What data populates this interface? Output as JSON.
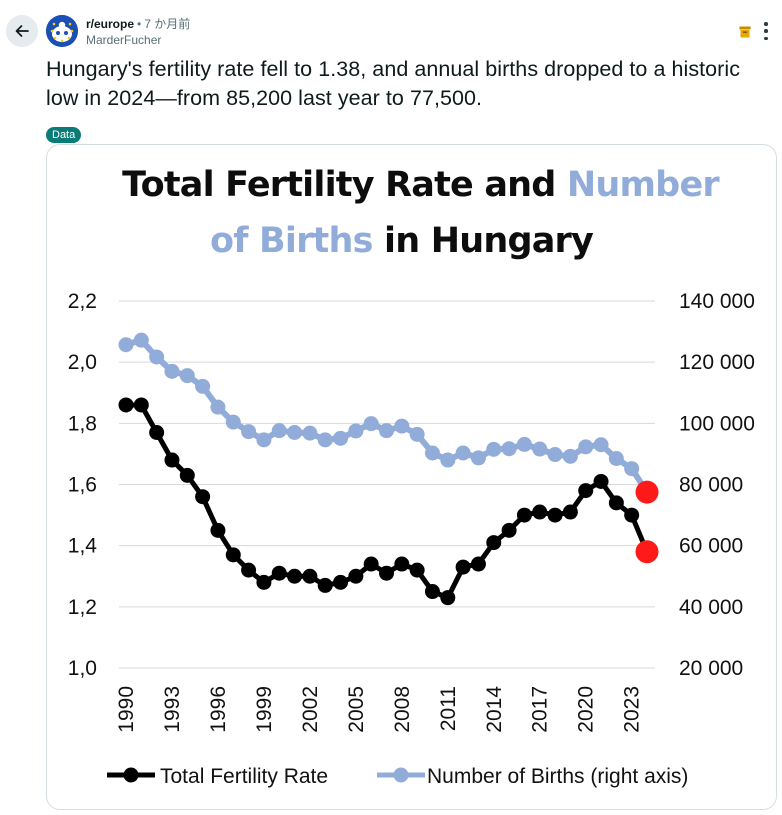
{
  "header": {
    "subreddit": "r/europe",
    "separator": "•",
    "time": "7 か月前",
    "author": "MarderFucher"
  },
  "post": {
    "title": "Hungary's fertility rate fell to 1.38, and annual births dropped to a historic low in 2024—from 85,200 last year to 77,500.",
    "flair": "Data"
  },
  "colors": {
    "fertility": "#000000",
    "births": "#92acd9",
    "highlight": "#ff1a1a",
    "flair_bg": "#0a7c77"
  },
  "icons": {
    "back": "arrow-left-icon",
    "archive": "archive-icon",
    "more": "more-vertical-icon"
  },
  "chart_data": {
    "type": "line",
    "title_part1": "Total Fertility Rate and",
    "title_part2": "Number",
    "title_part3": "of Births",
    "title_part4": "in Hungary",
    "x": [
      1990,
      1991,
      1992,
      1993,
      1994,
      1995,
      1996,
      1997,
      1998,
      1999,
      2000,
      2001,
      2002,
      2003,
      2004,
      2005,
      2006,
      2007,
      2008,
      2009,
      2010,
      2011,
      2012,
      2013,
      2014,
      2015,
      2016,
      2017,
      2018,
      2019,
      2020,
      2021,
      2022,
      2023,
      2024
    ],
    "x_tick_labels": [
      "1990",
      "1993",
      "1996",
      "1999",
      "2002",
      "2005",
      "2008",
      "2011",
      "2014",
      "2017",
      "2020",
      "2023"
    ],
    "y_left_ticks": [
      "2,2",
      "2,0",
      "1,8",
      "1,6",
      "1,4",
      "1,2",
      "1,0"
    ],
    "y_right_ticks": [
      "140 000",
      "120 000",
      "100 000",
      "80 000",
      "60 000",
      "40 000",
      "20 000"
    ],
    "ylim_left": [
      1.0,
      2.2
    ],
    "ylim_right": [
      20000,
      140000
    ],
    "grid": "horizontal",
    "legend_position": "bottom",
    "series": [
      {
        "name": "Total Fertility Rate",
        "axis": "left",
        "values": [
          1.86,
          1.86,
          1.77,
          1.68,
          1.63,
          1.56,
          1.45,
          1.37,
          1.32,
          1.28,
          1.31,
          1.3,
          1.3,
          1.27,
          1.28,
          1.3,
          1.34,
          1.31,
          1.34,
          1.32,
          1.25,
          1.23,
          1.33,
          1.34,
          1.41,
          1.45,
          1.5,
          1.51,
          1.5,
          1.51,
          1.58,
          1.61,
          1.54,
          1.5,
          1.38
        ]
      },
      {
        "name": "Number of Births (right axis)",
        "axis": "right",
        "values": [
          125700,
          127200,
          121700,
          117000,
          115600,
          112100,
          105300,
          100400,
          97300,
          94600,
          97600,
          97000,
          96800,
          94600,
          95100,
          97500,
          99900,
          97600,
          99100,
          96400,
          90300,
          88000,
          90300,
          88700,
          91500,
          91700,
          93100,
          91600,
          89800,
          89200,
          92300,
          93000,
          88500,
          85200,
          77500
        ]
      }
    ],
    "highlighted_points": [
      {
        "series": "Total Fertility Rate",
        "x": 2024,
        "y": 1.38
      },
      {
        "series": "Number of Births (right axis)",
        "x": 2024,
        "y": 77500
      }
    ]
  }
}
